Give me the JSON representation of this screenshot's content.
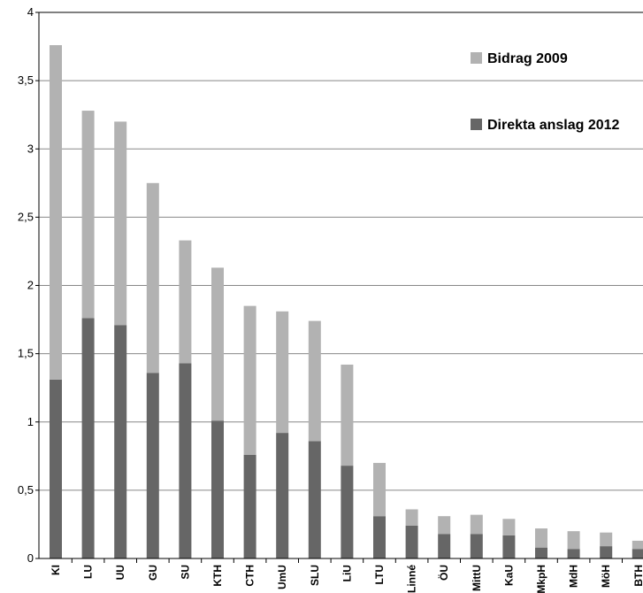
{
  "chart_data": {
    "type": "bar",
    "stacked": true,
    "categories": [
      "KI",
      "LU",
      "UU",
      "GU",
      "SU",
      "KTH",
      "CTH",
      "UmU",
      "SLU",
      "LiU",
      "LTU",
      "Linné",
      "ÖU",
      "MittU",
      "KaU",
      "MkpH",
      "MdH",
      "MöH",
      "BTH"
    ],
    "series": [
      {
        "name": "Direkta anslag 2012",
        "color": "#666666",
        "values": [
          1.31,
          1.76,
          1.71,
          1.36,
          1.43,
          1.01,
          0.76,
          0.92,
          0.86,
          0.68,
          0.31,
          0.24,
          0.18,
          0.18,
          0.17,
          0.08,
          0.07,
          0.09,
          0.07
        ]
      },
      {
        "name": "Bidrag 2009",
        "color": "#b2b2b2",
        "values": [
          2.45,
          1.52,
          1.49,
          1.39,
          0.9,
          1.12,
          1.09,
          0.89,
          0.88,
          0.74,
          0.39,
          0.12,
          0.13,
          0.14,
          0.12,
          0.14,
          0.13,
          0.1,
          0.06
        ]
      }
    ],
    "ylim": [
      0,
      4
    ],
    "yticks": [
      "0",
      "0,5",
      "1",
      "1,5",
      "2",
      "2,5",
      "3",
      "3,5",
      "4"
    ],
    "grid": true,
    "legend_position": "top-right"
  },
  "legend": {
    "top_label": "Bidrag 2009",
    "bottom_label": "Direkta anslag 2012"
  }
}
